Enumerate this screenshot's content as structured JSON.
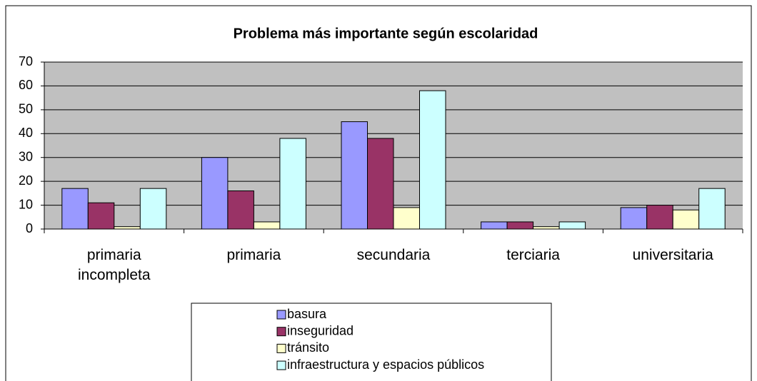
{
  "chart_data": {
    "type": "bar",
    "title": "Problema más importante según escolaridad",
    "categories": [
      "primaria incompleta",
      "primaria",
      "secundaria",
      "terciaria",
      "universitaria"
    ],
    "series": [
      {
        "name": "basura",
        "color": "#9999ff",
        "values": [
          17,
          30,
          45,
          3,
          9
        ]
      },
      {
        "name": "inseguridad",
        "color": "#993366",
        "values": [
          11,
          16,
          38,
          3,
          10
        ]
      },
      {
        "name": "tránsito",
        "color": "#ffffcc",
        "values": [
          1,
          3,
          9,
          1,
          8
        ]
      },
      {
        "name": "infraestructura y espacios públicos",
        "color": "#ccffff",
        "values": [
          17,
          38,
          58,
          3,
          17
        ]
      }
    ],
    "ylim": [
      0,
      70
    ],
    "yticks": [
      0,
      10,
      20,
      30,
      40,
      50,
      60,
      70
    ],
    "grid": true
  }
}
